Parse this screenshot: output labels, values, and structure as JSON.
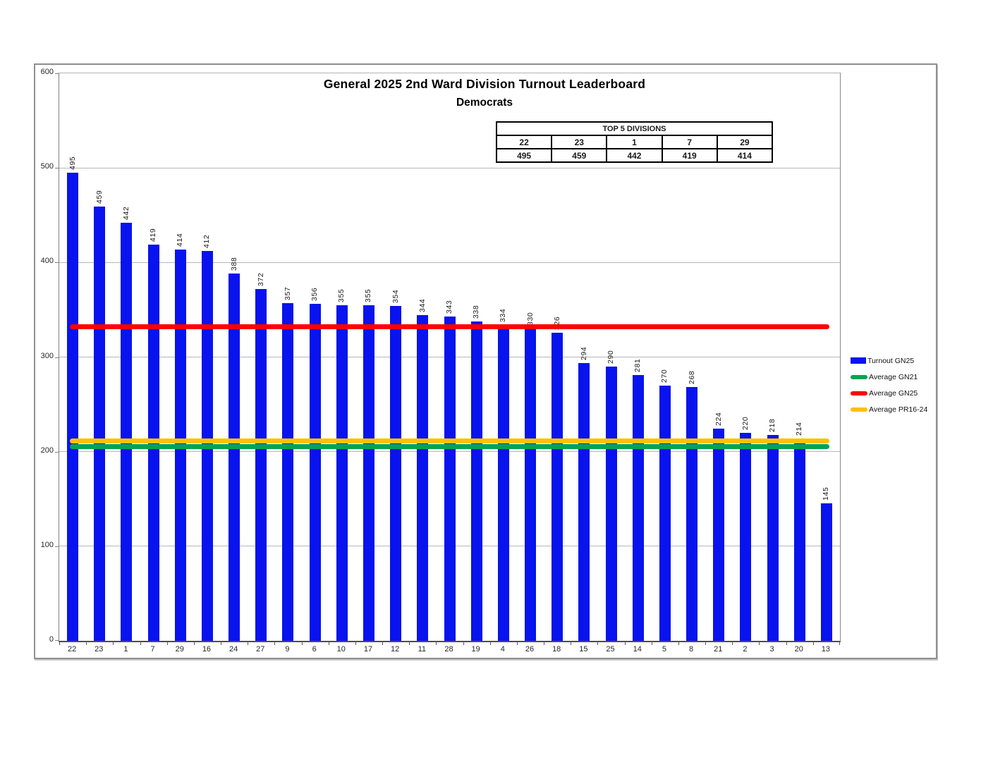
{
  "title": "General 2025 2nd Ward Division Turnout Leaderboard",
  "subtitle": "Democrats",
  "top5_table": {
    "header": "TOP 5 DIVISIONS",
    "divisions": [
      "22",
      "23",
      "1",
      "7",
      "29"
    ],
    "values": [
      "495",
      "459",
      "442",
      "419",
      "414"
    ]
  },
  "chart_data": {
    "type": "bar",
    "title": "General 2025 2nd Ward Division Turnout Leaderboard",
    "subtitle": "Democrats",
    "xlabel": "",
    "ylabel": "",
    "ylim": [
      0,
      600
    ],
    "yticks": [
      0,
      100,
      200,
      300,
      400,
      500,
      600
    ],
    "grid": "horizontal",
    "legend_position": "right",
    "bar_labels": true,
    "categories": [
      "22",
      "23",
      "1",
      "7",
      "29",
      "16",
      "24",
      "27",
      "9",
      "6",
      "10",
      "17",
      "12",
      "11",
      "28",
      "19",
      "4",
      "26",
      "18",
      "15",
      "25",
      "14",
      "5",
      "8",
      "21",
      "2",
      "3",
      "20",
      "13"
    ],
    "series": [
      {
        "name": "Turnout GN25",
        "type": "bar",
        "color": "#0813ee",
        "values": [
          495,
          459,
          442,
          419,
          414,
          412,
          388,
          372,
          357,
          356,
          355,
          355,
          354,
          344,
          343,
          338,
          334,
          330,
          326,
          294,
          290,
          281,
          270,
          268,
          224,
          220,
          218,
          214,
          145
        ]
      },
      {
        "name": "Average GN21",
        "type": "hline",
        "color": "#00a550",
        "value": 205
      },
      {
        "name": "Average GN25",
        "type": "hline",
        "color": "#fe0000",
        "value": 332
      },
      {
        "name": "Average PR16-24",
        "type": "hline",
        "color": "#ffc000",
        "value": 211
      }
    ]
  },
  "legend": {
    "items": [
      {
        "label": "Turnout GN25",
        "swatch": "bar",
        "color": "#0813ee"
      },
      {
        "label": "Average GN21",
        "swatch": "line",
        "color": "#00a550"
      },
      {
        "label": "Average GN25",
        "swatch": "line",
        "color": "#fe0000"
      },
      {
        "label": "Average PR16-24",
        "swatch": "line",
        "color": "#ffc000"
      }
    ]
  },
  "colors": {
    "bar": "#0813ee",
    "avg_gn21": "#00a550",
    "avg_gn25": "#fe0000",
    "avg_pr16_24": "#ffc000",
    "gridline": "#b7b7b7",
    "axis": "#595959"
  }
}
